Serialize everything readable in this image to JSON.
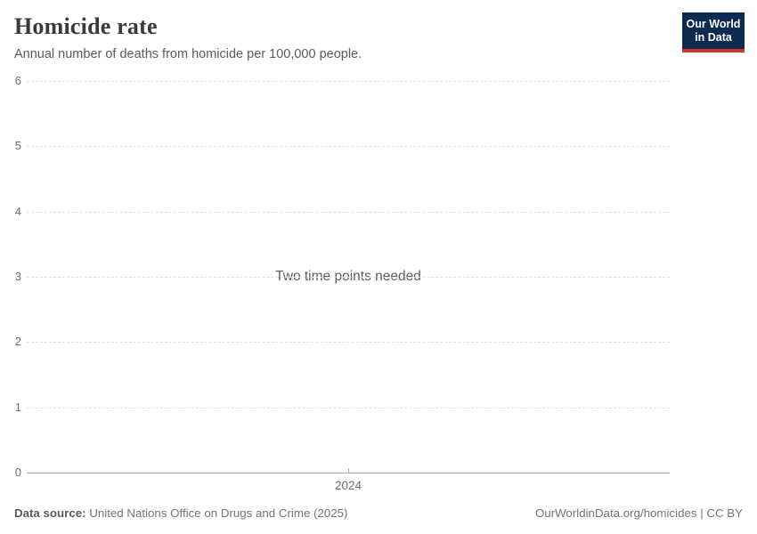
{
  "header": {
    "title": "Homicide rate",
    "subtitle": "Annual number of deaths from homicide per 100,000 people.",
    "logo": {
      "line1": "Our World",
      "line2": "in Data",
      "bg_color": "#0d2a50",
      "accent_color": "#cc3731"
    }
  },
  "chart_data": {
    "type": "line",
    "title": "Homicide rate",
    "subtitle": "Annual number of deaths from homicide per 100,000 people.",
    "series": [],
    "empty_state_message": "Two time points needed",
    "x_tick_labels": [
      "2024"
    ],
    "y_tick_labels": [
      "0",
      "1",
      "2",
      "3",
      "4",
      "5",
      "6"
    ],
    "ylim": [
      0,
      6
    ],
    "grid": "horizontal-dashed",
    "legend": "none",
    "colors": {
      "gridline": "#e2e2e2",
      "axis_line": "#a7a7a7",
      "tick_text": "#6e6e6e"
    }
  },
  "footer": {
    "datasource_label": "Data source:",
    "datasource_value": "United Nations Office on Drugs and Crime (2025)",
    "attribution": "OurWorldinData.org/homicides | CC BY"
  }
}
